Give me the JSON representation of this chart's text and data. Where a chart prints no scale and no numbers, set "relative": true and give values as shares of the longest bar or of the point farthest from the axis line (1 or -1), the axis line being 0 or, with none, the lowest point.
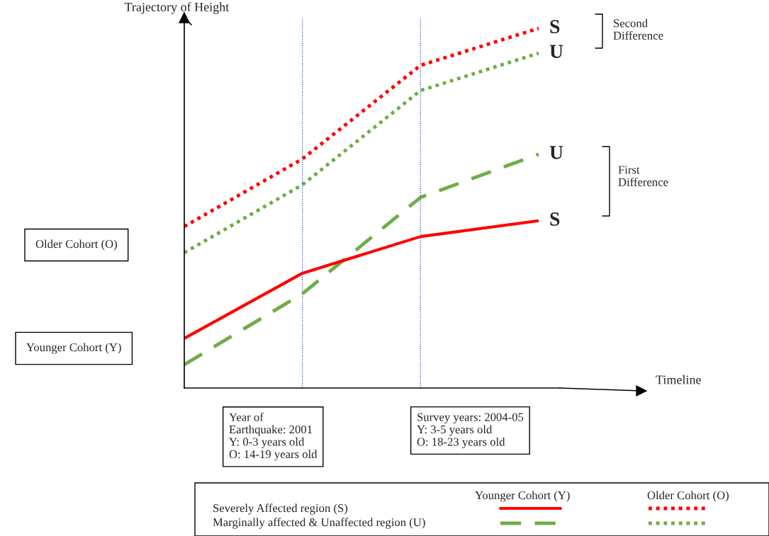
{
  "chart_data": {
    "type": "line",
    "relative": true,
    "ylabel": "Trajectory of Height",
    "categories": [
      null,
      null,
      null,
      null
    ],
    "series": [
      {
        "name": "S",
        "color": "#ff0000",
        "line_style": "dotted",
        "values": [
          0.449,
          0.637,
          0.897,
          1.0
        ]
      },
      {
        "name": "U",
        "color": "#70ad47",
        "line_style": "dotted",
        "values": [
          0.376,
          0.565,
          0.827,
          0.931
        ]
      },
      {
        "name": "U",
        "color": "#70ad47",
        "line_style": "dashed",
        "values": [
          0.065,
          0.262,
          0.53,
          0.65
        ]
      },
      {
        "name": "S",
        "color": "#ff0000",
        "line_style": "solid",
        "values": [
          0.138,
          0.319,
          0.421,
          0.465
        ]
      }
    ],
    "annotations": [
      "Timeline",
      "Year of\nEarthquake: 2001\nY: 0-3 years old\nO: 14-19 years old",
      "Survey years: 2004-05\nY: 3-5 years old\nO: 18-23 years old",
      "Older Cohort (O)",
      "Younger Cohort (Y)",
      "Second\nDifference",
      "First\nDifference",
      "Younger Cohort (Y)",
      "Older Cohort (O)",
      "Severely Affected region (S)",
      "Marginally affected & Unaffected region (U)"
    ],
    "grid": false,
    "marker": "none"
  }
}
